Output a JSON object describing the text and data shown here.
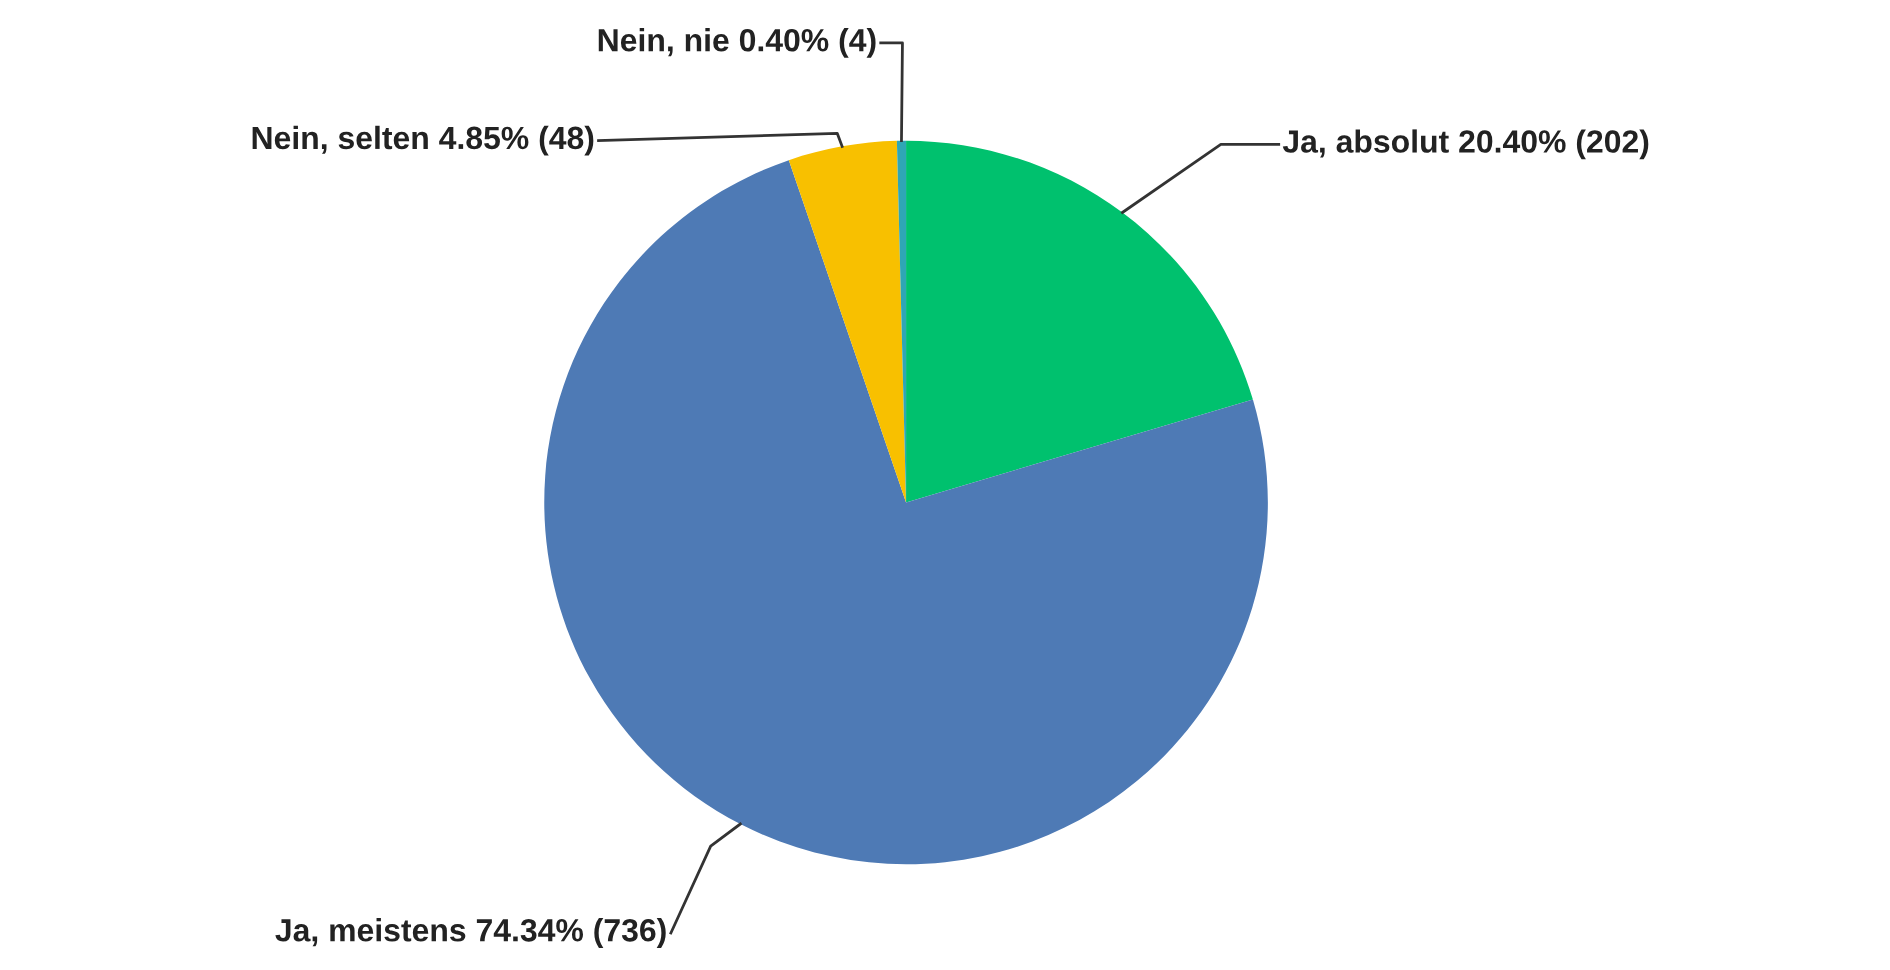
{
  "chart_data": {
    "type": "pie",
    "categories": [
      "Ja, absolut",
      "Ja, meistens",
      "Nein, selten",
      "Nein, nie"
    ],
    "values": [
      202,
      736,
      48,
      4
    ],
    "value_labels": [
      "20.40% (202)",
      "74.34% (736)",
      "4.85% (48)",
      "0.40% (4)"
    ],
    "colors": [
      "#00c16e",
      "#4e7ab5",
      "#f8c000",
      "#2fa6b5"
    ]
  }
}
